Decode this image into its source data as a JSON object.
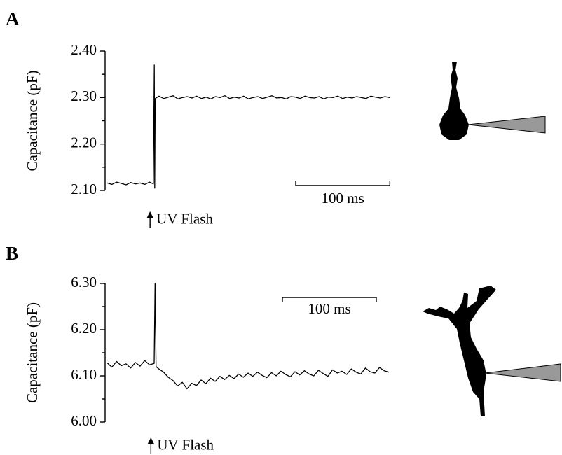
{
  "chart_data": [
    {
      "type": "line",
      "panel": "A",
      "y_label": "Capacitance (pF)",
      "ylim": [
        2.1,
        2.4
      ],
      "yticks": [
        {
          "value": 2.1,
          "label": "2.10"
        },
        {
          "value": 2.2,
          "label": "2.20"
        },
        {
          "value": 2.3,
          "label": "2.30"
        },
        {
          "value": 2.4,
          "label": "2.40"
        }
      ],
      "minor_yticks": [
        2.15,
        2.25,
        2.35
      ],
      "xlim": [
        0,
        300
      ],
      "scale_bar": {
        "value": 100,
        "label": "100 ms"
      },
      "annotation": {
        "text": "UV Flash",
        "x": 50
      },
      "x": [
        0,
        5,
        10,
        15,
        20,
        25,
        30,
        35,
        40,
        45,
        49,
        50,
        50.5,
        51,
        55,
        60,
        65,
        70,
        75,
        80,
        85,
        90,
        95,
        100,
        105,
        110,
        115,
        120,
        125,
        130,
        135,
        140,
        145,
        150,
        155,
        160,
        165,
        170,
        175,
        180,
        185,
        190,
        195,
        200,
        205,
        210,
        215,
        220,
        225,
        230,
        235,
        240,
        245,
        250,
        255,
        260,
        265,
        270,
        275,
        280,
        285,
        290,
        295,
        300
      ],
      "values": [
        2.116,
        2.113,
        2.118,
        2.115,
        2.112,
        2.117,
        2.114,
        2.116,
        2.113,
        2.118,
        2.114,
        2.37,
        2.105,
        2.298,
        2.303,
        2.298,
        2.301,
        2.304,
        2.297,
        2.3,
        2.302,
        2.299,
        2.303,
        2.298,
        2.301,
        2.297,
        2.302,
        2.3,
        2.304,
        2.298,
        2.301,
        2.299,
        2.303,
        2.297,
        2.3,
        2.302,
        2.298,
        2.301,
        2.304,
        2.299,
        2.3,
        2.297,
        2.302,
        2.301,
        2.298,
        2.303,
        2.3,
        2.299,
        2.302,
        2.297,
        2.301,
        2.3,
        2.303,
        2.298,
        2.301,
        2.299,
        2.302,
        2.3,
        2.298,
        2.303,
        2.301,
        2.299,
        2.302,
        2.3
      ]
    },
    {
      "type": "line",
      "panel": "B",
      "y_label": "Capacitance (pF)",
      "ylim": [
        6.0,
        6.3
      ],
      "yticks": [
        {
          "value": 6.0,
          "label": "6.00"
        },
        {
          "value": 6.1,
          "label": "6.10"
        },
        {
          "value": 6.2,
          "label": "6.20"
        },
        {
          "value": 6.3,
          "label": "6.30"
        }
      ],
      "minor_yticks": [
        6.05,
        6.15,
        6.25
      ],
      "xlim": [
        0,
        300
      ],
      "scale_bar": {
        "value": 100,
        "label": "100 ms"
      },
      "annotation": {
        "text": "UV Flash",
        "x": 51
      },
      "x": [
        0,
        5,
        10,
        15,
        20,
        25,
        30,
        35,
        40,
        45,
        50,
        51,
        52,
        55,
        60,
        65,
        70,
        75,
        80,
        85,
        90,
        95,
        100,
        105,
        110,
        115,
        120,
        125,
        130,
        135,
        140,
        145,
        150,
        155,
        160,
        165,
        170,
        175,
        180,
        185,
        190,
        195,
        200,
        205,
        210,
        215,
        220,
        225,
        230,
        235,
        240,
        245,
        250,
        255,
        260,
        265,
        270,
        275,
        280,
        285,
        290,
        295,
        300
      ],
      "values": [
        6.128,
        6.119,
        6.131,
        6.122,
        6.126,
        6.117,
        6.129,
        6.121,
        6.133,
        6.124,
        6.127,
        6.3,
        6.12,
        6.115,
        6.108,
        6.097,
        6.09,
        6.078,
        6.086,
        6.072,
        6.084,
        6.079,
        6.091,
        6.083,
        6.095,
        6.088,
        6.099,
        6.092,
        6.101,
        6.094,
        6.104,
        6.097,
        6.106,
        6.099,
        6.108,
        6.101,
        6.096,
        6.107,
        6.1,
        6.11,
        6.103,
        6.098,
        6.109,
        6.102,
        6.111,
        6.104,
        6.1,
        6.112,
        6.105,
        6.099,
        6.113,
        6.106,
        6.11,
        6.103,
        6.115,
        6.108,
        6.104,
        6.117,
        6.109,
        6.106,
        6.118,
        6.111,
        6.108
      ]
    }
  ]
}
